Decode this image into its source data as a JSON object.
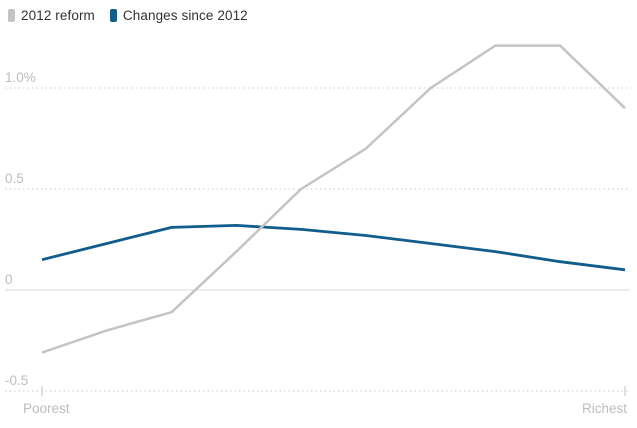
{
  "chart_data": {
    "type": "line",
    "title": "",
    "x_axis": {
      "left_label": "Poorest",
      "right_label": "Richest",
      "description": "10 income groups from poorest to richest"
    },
    "y_axis": {
      "unit": "%",
      "ticks": [
        {
          "label": "1.0%",
          "value": 1.0
        },
        {
          "label": "0.5",
          "value": 0.5
        },
        {
          "label": "0",
          "value": 0
        },
        {
          "label": "-0.5",
          "value": -0.5
        }
      ]
    },
    "ylim": [
      -0.62,
      1.33
    ],
    "grid": "dotted horizontal lines, solid line at zero",
    "legend_position": "top-left",
    "series": [
      {
        "name": "2012 reform",
        "color": "#c4c4c4",
        "values": [
          -0.31,
          -0.2,
          -0.11,
          0.19,
          0.5,
          0.7,
          1.0,
          1.21,
          1.21,
          0.9
        ]
      },
      {
        "name": "Changes since 2012",
        "color": "#115d8c",
        "values": [
          0.15,
          0.23,
          0.31,
          0.32,
          0.3,
          0.27,
          0.23,
          0.19,
          0.14,
          0.1
        ]
      }
    ]
  },
  "colors": {
    "legend_text": "#333333",
    "axis_text": "#bdbdbd",
    "gridline": "#d5d5d5",
    "zero_line": "#d9d9d9",
    "tick_mark": "#c6c6c6"
  }
}
